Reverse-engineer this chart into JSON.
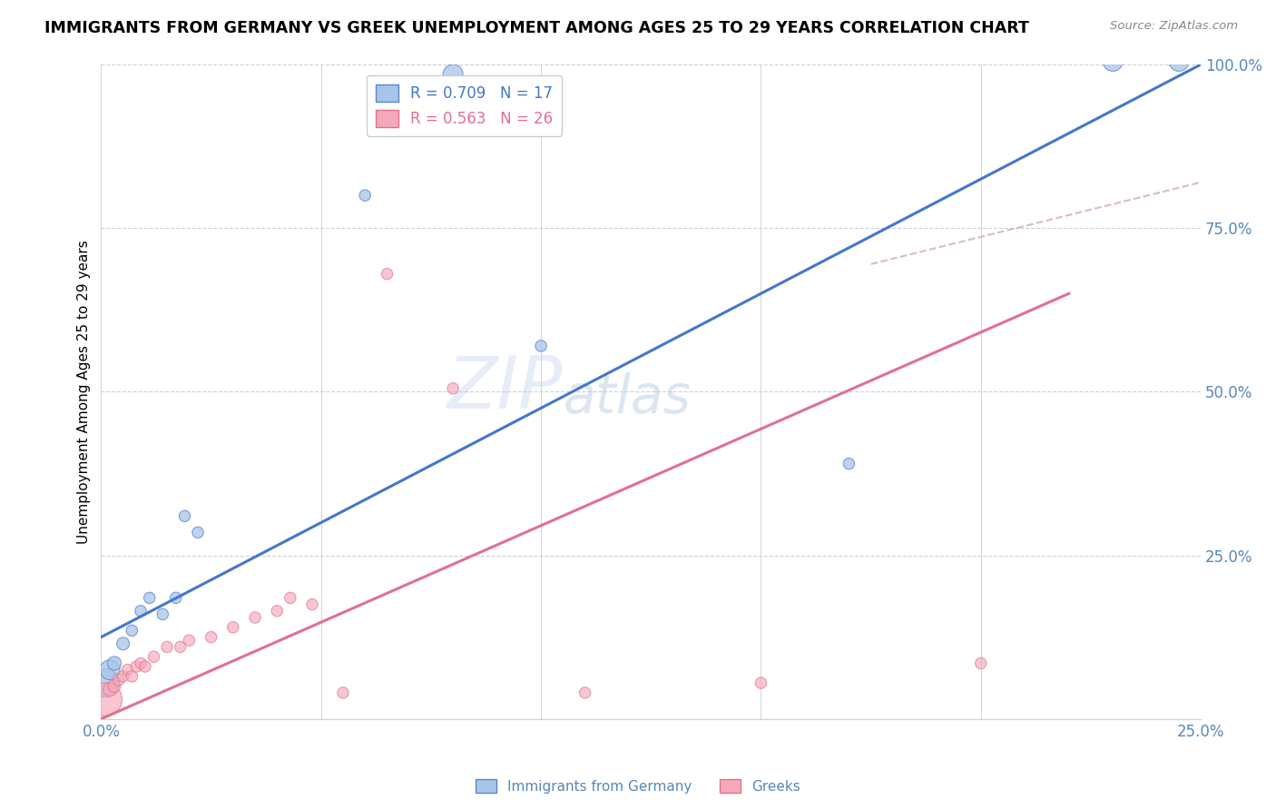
{
  "title": "IMMIGRANTS FROM GERMANY VS GREEK UNEMPLOYMENT AMONG AGES 25 TO 29 YEARS CORRELATION CHART",
  "source": "Source: ZipAtlas.com",
  "ylabel": "Unemployment Among Ages 25 to 29 years",
  "xlim": [
    0.0,
    0.25
  ],
  "ylim": [
    0.0,
    1.0
  ],
  "xtick_vals": [
    0.0,
    0.05,
    0.1,
    0.15,
    0.2,
    0.25
  ],
  "xtick_labels": [
    "0.0%",
    "",
    "",
    "",
    "",
    "25.0%"
  ],
  "ytick_vals": [
    0.0,
    0.25,
    0.5,
    0.75,
    1.0
  ],
  "ytick_right_labels": [
    "",
    "25.0%",
    "50.0%",
    "75.0%",
    "100.0%"
  ],
  "blue_R": 0.709,
  "blue_N": 17,
  "pink_R": 0.563,
  "pink_N": 26,
  "blue_fill_color": "#A8C4E8",
  "pink_fill_color": "#F4A8B8",
  "blue_edge_color": "#5588CC",
  "pink_edge_color": "#E07090",
  "line_blue_color": "#4477CC",
  "line_pink_color": "#E07090",
  "dashed_color": "#C8A0B0",
  "watermark_zip": "ZIP",
  "watermark_atlas": "atlas",
  "axis_color": "#5588BB",
  "grid_color": "#CCCCDD",
  "title_fontsize": 12.5,
  "legend_fontsize": 12,
  "blue_scatter_x": [
    0.001,
    0.002,
    0.003,
    0.005,
    0.007,
    0.009,
    0.011,
    0.014,
    0.017,
    0.019,
    0.022,
    0.08,
    0.1,
    0.17,
    0.23,
    0.245,
    0.06
  ],
  "blue_scatter_y": [
    0.055,
    0.075,
    0.085,
    0.115,
    0.135,
    0.165,
    0.185,
    0.16,
    0.185,
    0.31,
    0.285,
    0.985,
    0.57,
    0.39,
    1.005,
    1.005,
    0.8
  ],
  "blue_scatter_size": [
    500,
    250,
    120,
    100,
    80,
    80,
    80,
    80,
    80,
    80,
    80,
    250,
    80,
    80,
    250,
    250,
    80
  ],
  "pink_scatter_x": [
    0.001,
    0.002,
    0.003,
    0.004,
    0.005,
    0.006,
    0.007,
    0.008,
    0.009,
    0.01,
    0.012,
    0.015,
    0.018,
    0.02,
    0.025,
    0.03,
    0.035,
    0.04,
    0.043,
    0.048,
    0.055,
    0.065,
    0.08,
    0.11,
    0.15,
    0.2
  ],
  "pink_scatter_y": [
    0.03,
    0.045,
    0.05,
    0.06,
    0.065,
    0.075,
    0.065,
    0.08,
    0.085,
    0.08,
    0.095,
    0.11,
    0.11,
    0.12,
    0.125,
    0.14,
    0.155,
    0.165,
    0.185,
    0.175,
    0.04,
    0.68,
    0.505,
    0.04,
    0.055,
    0.085
  ],
  "pink_scatter_size": [
    700,
    120,
    100,
    90,
    80,
    80,
    80,
    80,
    80,
    80,
    80,
    80,
    80,
    80,
    80,
    80,
    80,
    80,
    80,
    80,
    80,
    80,
    80,
    80,
    80,
    80
  ],
  "blue_line_x0": 0.0,
  "blue_line_y0": 0.125,
  "blue_line_x1": 0.25,
  "blue_line_y1": 1.0,
  "pink_line_x0": 0.0,
  "pink_line_y0": 0.0,
  "pink_line_x1": 0.22,
  "pink_line_y1": 0.65,
  "dashed_line_x0": 0.175,
  "dashed_line_y0": 0.695,
  "dashed_line_x1": 0.25,
  "dashed_line_y1": 0.82
}
